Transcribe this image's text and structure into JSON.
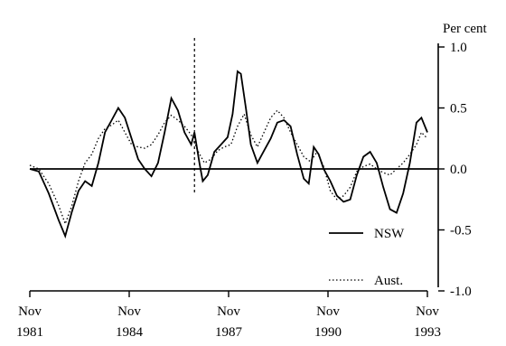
{
  "chart_data": {
    "type": "line",
    "ylabel": "Per cent",
    "ylim": [
      -1.0,
      1.0
    ],
    "yticks": [
      1.0,
      0.5,
      0.0,
      -0.5,
      -1.0
    ],
    "ytick_labels": [
      "1.0",
      "0.5",
      "0.0",
      "-0.5",
      "-1.0"
    ],
    "xlim": [
      1981.83,
      1993.83
    ],
    "xticks": [
      {
        "month": "Nov",
        "year": "1981",
        "x": 1981.83
      },
      {
        "month": "Nov",
        "year": "1984",
        "x": 1984.83
      },
      {
        "month": "Nov",
        "year": "1987",
        "x": 1987.83
      },
      {
        "month": "Nov",
        "year": "1990",
        "x": 1990.83
      },
      {
        "month": "Nov",
        "year": "1993",
        "x": 1993.83
      }
    ],
    "zero_line": true,
    "legend_position": "bottom-right",
    "series": [
      {
        "name": "NSW",
        "style": "solid",
        "points": [
          [
            1981.83,
            0.0
          ],
          [
            1982.1,
            -0.02
          ],
          [
            1982.4,
            -0.2
          ],
          [
            1982.7,
            -0.42
          ],
          [
            1982.9,
            -0.55
          ],
          [
            1983.1,
            -0.35
          ],
          [
            1983.3,
            -0.18
          ],
          [
            1983.5,
            -0.1
          ],
          [
            1983.7,
            -0.14
          ],
          [
            1983.9,
            0.05
          ],
          [
            1984.1,
            0.3
          ],
          [
            1984.3,
            0.4
          ],
          [
            1984.5,
            0.5
          ],
          [
            1984.7,
            0.42
          ],
          [
            1984.9,
            0.25
          ],
          [
            1985.1,
            0.08
          ],
          [
            1985.3,
            0.0
          ],
          [
            1985.5,
            -0.06
          ],
          [
            1985.7,
            0.05
          ],
          [
            1985.9,
            0.3
          ],
          [
            1986.1,
            0.58
          ],
          [
            1986.3,
            0.48
          ],
          [
            1986.5,
            0.3
          ],
          [
            1986.7,
            0.2
          ],
          [
            1986.8,
            0.3
          ],
          [
            1986.95,
            0.05
          ],
          [
            1987.05,
            -0.1
          ],
          [
            1987.2,
            -0.05
          ],
          [
            1987.4,
            0.14
          ],
          [
            1987.6,
            0.2
          ],
          [
            1987.8,
            0.26
          ],
          [
            1987.95,
            0.45
          ],
          [
            1988.1,
            0.8
          ],
          [
            1988.2,
            0.78
          ],
          [
            1988.35,
            0.5
          ],
          [
            1988.5,
            0.2
          ],
          [
            1988.7,
            0.05
          ],
          [
            1988.9,
            0.15
          ],
          [
            1989.1,
            0.25
          ],
          [
            1989.3,
            0.38
          ],
          [
            1989.5,
            0.4
          ],
          [
            1989.7,
            0.35
          ],
          [
            1989.9,
            0.12
          ],
          [
            1990.1,
            -0.08
          ],
          [
            1990.25,
            -0.12
          ],
          [
            1990.4,
            0.18
          ],
          [
            1990.55,
            0.12
          ],
          [
            1990.7,
            0.0
          ],
          [
            1990.9,
            -0.1
          ],
          [
            1991.1,
            -0.22
          ],
          [
            1991.3,
            -0.27
          ],
          [
            1991.5,
            -0.25
          ],
          [
            1991.7,
            -0.05
          ],
          [
            1991.9,
            0.1
          ],
          [
            1992.1,
            0.14
          ],
          [
            1992.3,
            0.05
          ],
          [
            1992.5,
            -0.15
          ],
          [
            1992.7,
            -0.33
          ],
          [
            1992.9,
            -0.36
          ],
          [
            1993.1,
            -0.2
          ],
          [
            1993.3,
            0.05
          ],
          [
            1993.5,
            0.38
          ],
          [
            1993.65,
            0.42
          ],
          [
            1993.83,
            0.3
          ]
        ]
      },
      {
        "name": "Aust.",
        "style": "dotted",
        "points": [
          [
            1981.83,
            0.03
          ],
          [
            1982.1,
            0.0
          ],
          [
            1982.4,
            -0.12
          ],
          [
            1982.7,
            -0.3
          ],
          [
            1982.9,
            -0.45
          ],
          [
            1983.1,
            -0.3
          ],
          [
            1983.3,
            -0.1
          ],
          [
            1983.5,
            0.05
          ],
          [
            1983.7,
            0.12
          ],
          [
            1983.9,
            0.25
          ],
          [
            1984.1,
            0.33
          ],
          [
            1984.3,
            0.36
          ],
          [
            1984.5,
            0.4
          ],
          [
            1984.7,
            0.3
          ],
          [
            1984.9,
            0.2
          ],
          [
            1985.1,
            0.18
          ],
          [
            1985.3,
            0.17
          ],
          [
            1985.5,
            0.2
          ],
          [
            1985.7,
            0.28
          ],
          [
            1985.9,
            0.38
          ],
          [
            1986.1,
            0.44
          ],
          [
            1986.3,
            0.4
          ],
          [
            1986.5,
            0.35
          ],
          [
            1986.7,
            0.28
          ],
          [
            1986.9,
            0.15
          ],
          [
            1987.1,
            0.05
          ],
          [
            1987.3,
            0.08
          ],
          [
            1987.5,
            0.15
          ],
          [
            1987.7,
            0.18
          ],
          [
            1987.9,
            0.2
          ],
          [
            1988.1,
            0.35
          ],
          [
            1988.3,
            0.45
          ],
          [
            1988.5,
            0.28
          ],
          [
            1988.7,
            0.18
          ],
          [
            1988.9,
            0.3
          ],
          [
            1989.1,
            0.42
          ],
          [
            1989.3,
            0.48
          ],
          [
            1989.5,
            0.42
          ],
          [
            1989.7,
            0.3
          ],
          [
            1989.9,
            0.2
          ],
          [
            1990.1,
            0.1
          ],
          [
            1990.3,
            0.06
          ],
          [
            1990.5,
            0.14
          ],
          [
            1990.7,
            0.02
          ],
          [
            1990.9,
            -0.18
          ],
          [
            1991.1,
            -0.25
          ],
          [
            1991.3,
            -0.22
          ],
          [
            1991.5,
            -0.15
          ],
          [
            1991.7,
            -0.02
          ],
          [
            1991.9,
            0.02
          ],
          [
            1992.1,
            0.04
          ],
          [
            1992.3,
            0.0
          ],
          [
            1992.5,
            -0.03
          ],
          [
            1992.7,
            -0.05
          ],
          [
            1992.9,
            0.0
          ],
          [
            1993.1,
            0.05
          ],
          [
            1993.3,
            0.12
          ],
          [
            1993.5,
            0.2
          ],
          [
            1993.65,
            0.3
          ],
          [
            1993.83,
            0.25
          ]
        ]
      }
    ]
  }
}
